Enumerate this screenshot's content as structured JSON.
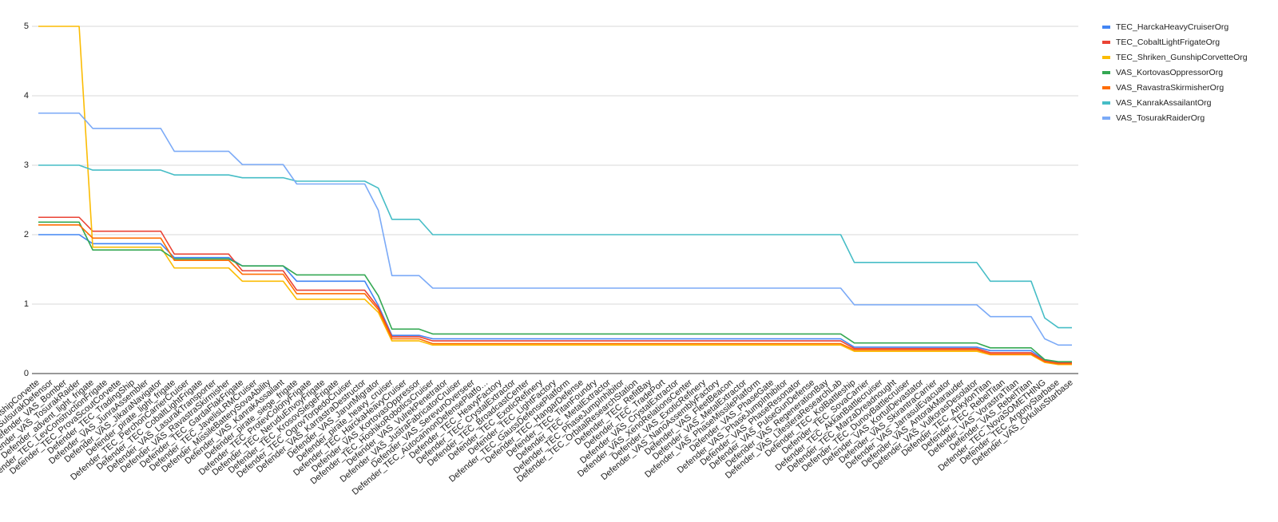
{
  "chart_data": {
    "type": "line",
    "categories": [
      "Defender_TEC_GunshipCorvette",
      "Defender_VAS_SulsurakDefensor",
      "Defender_VAS_Bomber",
      "Defender_VAS_TosurakRaider",
      "Defender_advent_light_frigate",
      "Defender_TEC_LevConstructionFrigate",
      "Defender_TEC_ProvaScoutCorvette",
      "Defender_TEC_TradingShip",
      "Defender_VAS_JunraAssembler",
      "Defender_VAS_JikaraNavigator",
      "Defender_pirate_light_frigate",
      "Defender_TEC_PerchonCarrierCruiser",
      "Defender_TEC_CobaltLightFrigate",
      "Defender_VAS_LasurakTransporter",
      "Defender_VAS_RavastraSkirmisher",
      "Defender_TEC_GardaFlakFrigate",
      "Defender_TEC_JavelisLRMCruiser",
      "Defender_MissileBatterySovaAbility",
      "Defender_VAS_KanrakAssailant",
      "Defender_pirate_siege_frigate",
      "Defender_TEC_ProtevColonyFrigate",
      "Defender_TEC_NeruduEnvoyFrigate",
      "Defender_TEC_KrosovSiegeFrigate",
      "Defender_TEC_OgrovTorpedoCruiser",
      "Defender_VAS_KarrastraDestructor",
      "Defender_VAS_JarunMigrator",
      "Defender_pirate_heavy_cruiser",
      "Defender_TEC_HarckaHeavyCruiser",
      "Defender_VAS_KortovasOppressor",
      "Defender_TEC_HoshikoRoboticsCruiser",
      "Defender_VAS_VulrekPenetrator",
      "Defender_VAS_JustraFabricatorCruiser",
      "Defender_VAS_SerevunOverseer",
      "Defender_TEC_AutocannonDefensePlatfo…",
      "Defender_TEC_HeavyFactory",
      "Defender_TEC_CrystalExtractor",
      "Defender_TEC_BroadcastCenter",
      "Defender_TEC_ExoticRefinery",
      "Defender_TEC_LightFactory",
      "Defender_TEC_GaussDefensePlatform",
      "Defender_TEC_HangarDefense",
      "Defender_TEC_TitanFoundry",
      "Defender_TEC_MetalExtractor",
      "Defender_TEC_PhaseJumpInhibitor",
      "Defender_TEC_OrbitalResearchStation",
      "Defender_TEC_RefitBay",
      "Defender_TEC_TradePort",
      "Defender_VAS_CrystalExtractor",
      "Defender_VAS_XenoRelationsCenter",
      "Defender_VAS_ExoticRefinery",
      "Defender_VAS_NanoAssemblyFactory",
      "Defender_VAS_FleetBeacon",
      "Defender_VAS_MetalExtractor",
      "Defender_VAS_PhaseMissilePlatform",
      "Defender_VAS_PhaseGate",
      "Defender_VAS_PhaseJumpInhibitor",
      "Defender_VAS_PhaseResonator",
      "Defender_VAS_PulseGunDefense",
      "Defender_VAS_RegenerationBay",
      "Defender_VAS_LifesteraResearchLab",
      "Defender_TEC_KolBattleship",
      "Defender_TEC_SovaCarrier",
      "Defender_TEC_AkkanBattlecruiser",
      "Defender_TEC_MarzaDreadnought",
      "Defender_TEC_DunovBattlecruiser",
      "Defender_VAS_KortulDevastator",
      "Defender_VAS_SkirantraCarrier",
      "Defender_VAS_JarrasulEvacuator",
      "Defender_VAS_AntorakMarauder",
      "Defender_VAS_VulkorasDesolator",
      "Defender_TEC_AnkylonTitan",
      "Defender_TEC_RebelTitan",
      "Defender_VAS_VorastraTitan",
      "Defender_VAS_RebelTitan",
      "Defender_TEC_NovaSOMETHING",
      "Defender_TEC_ArgonyStarbase",
      "Defender_VAS_OrkulusStarbase"
    ],
    "series": [
      {
        "name": "TEC_HarckaHeavyCruiserOrg",
        "color": "#4285f4",
        "values": [
          2,
          2,
          2,
          2,
          1.87,
          1.87,
          1.87,
          1.87,
          1.87,
          1.87,
          1.67,
          1.67,
          1.67,
          1.67,
          1.67,
          1.55,
          1.55,
          1.55,
          1.55,
          1.33,
          1.33,
          1.33,
          1.33,
          1.33,
          1.33,
          0.98,
          0.55,
          0.55,
          0.55,
          0.5,
          0.5,
          0.5,
          0.5,
          0.5,
          0.5,
          0.5,
          0.5,
          0.5,
          0.5,
          0.5,
          0.5,
          0.5,
          0.5,
          0.5,
          0.5,
          0.5,
          0.5,
          0.5,
          0.5,
          0.5,
          0.5,
          0.5,
          0.5,
          0.5,
          0.5,
          0.5,
          0.5,
          0.5,
          0.5,
          0.5,
          0.38,
          0.38,
          0.38,
          0.38,
          0.38,
          0.38,
          0.38,
          0.38,
          0.38,
          0.38,
          0.33,
          0.33,
          0.33,
          0.33,
          0.19,
          0.16,
          0.16
        ]
      },
      {
        "name": "TEC_CobaltLightFrigateOrg",
        "color": "#ea4335",
        "values": [
          2.25,
          2.25,
          2.25,
          2.25,
          2.05,
          2.05,
          2.05,
          2.05,
          2.05,
          2.05,
          1.72,
          1.72,
          1.72,
          1.72,
          1.72,
          1.48,
          1.48,
          1.48,
          1.48,
          1.2,
          1.2,
          1.2,
          1.2,
          1.2,
          1.2,
          0.95,
          0.53,
          0.53,
          0.53,
          0.47,
          0.47,
          0.47,
          0.47,
          0.47,
          0.47,
          0.47,
          0.47,
          0.47,
          0.47,
          0.47,
          0.47,
          0.47,
          0.47,
          0.47,
          0.47,
          0.47,
          0.47,
          0.47,
          0.47,
          0.47,
          0.47,
          0.47,
          0.47,
          0.47,
          0.47,
          0.47,
          0.47,
          0.47,
          0.47,
          0.47,
          0.36,
          0.36,
          0.36,
          0.36,
          0.36,
          0.36,
          0.36,
          0.36,
          0.36,
          0.36,
          0.3,
          0.3,
          0.3,
          0.3,
          0.18,
          0.15,
          0.15
        ]
      },
      {
        "name": "TEC_Shriken_GunshipCorvetteOrg",
        "color": "#fbbc04",
        "values": [
          5,
          5,
          5,
          5,
          1.82,
          1.82,
          1.82,
          1.82,
          1.82,
          1.82,
          1.52,
          1.52,
          1.52,
          1.52,
          1.52,
          1.33,
          1.33,
          1.33,
          1.33,
          1.07,
          1.07,
          1.07,
          1.07,
          1.07,
          1.07,
          0.88,
          0.47,
          0.47,
          0.47,
          0.41,
          0.41,
          0.41,
          0.41,
          0.41,
          0.41,
          0.41,
          0.41,
          0.41,
          0.41,
          0.41,
          0.41,
          0.41,
          0.41,
          0.41,
          0.41,
          0.41,
          0.41,
          0.41,
          0.41,
          0.41,
          0.41,
          0.41,
          0.41,
          0.41,
          0.41,
          0.41,
          0.41,
          0.41,
          0.41,
          0.41,
          0.32,
          0.32,
          0.32,
          0.32,
          0.32,
          0.32,
          0.32,
          0.32,
          0.32,
          0.32,
          0.27,
          0.27,
          0.27,
          0.27,
          0.16,
          0.13,
          0.13
        ]
      },
      {
        "name": "VAS_KortovasOppressorOrg",
        "color": "#34a853",
        "values": [
          2.18,
          2.18,
          2.18,
          2.18,
          1.78,
          1.78,
          1.78,
          1.78,
          1.78,
          1.78,
          1.65,
          1.65,
          1.65,
          1.65,
          1.65,
          1.55,
          1.55,
          1.55,
          1.55,
          1.42,
          1.42,
          1.42,
          1.42,
          1.42,
          1.42,
          1.12,
          0.64,
          0.64,
          0.64,
          0.57,
          0.57,
          0.57,
          0.57,
          0.57,
          0.57,
          0.57,
          0.57,
          0.57,
          0.57,
          0.57,
          0.57,
          0.57,
          0.57,
          0.57,
          0.57,
          0.57,
          0.57,
          0.57,
          0.57,
          0.57,
          0.57,
          0.57,
          0.57,
          0.57,
          0.57,
          0.57,
          0.57,
          0.57,
          0.57,
          0.57,
          0.44,
          0.44,
          0.44,
          0.44,
          0.44,
          0.44,
          0.44,
          0.44,
          0.44,
          0.44,
          0.37,
          0.37,
          0.37,
          0.37,
          0.2,
          0.17,
          0.17
        ]
      },
      {
        "name": "VAS_RavastraSkirmisherOrg",
        "color": "#ff6d01",
        "values": [
          2.14,
          2.14,
          2.14,
          2.14,
          1.95,
          1.95,
          1.95,
          1.95,
          1.95,
          1.95,
          1.63,
          1.63,
          1.63,
          1.63,
          1.63,
          1.43,
          1.43,
          1.43,
          1.43,
          1.15,
          1.15,
          1.15,
          1.15,
          1.15,
          1.15,
          0.92,
          0.5,
          0.5,
          0.5,
          0.43,
          0.43,
          0.43,
          0.43,
          0.43,
          0.43,
          0.43,
          0.43,
          0.43,
          0.43,
          0.43,
          0.43,
          0.43,
          0.43,
          0.43,
          0.43,
          0.43,
          0.43,
          0.43,
          0.43,
          0.43,
          0.43,
          0.43,
          0.43,
          0.43,
          0.43,
          0.43,
          0.43,
          0.43,
          0.43,
          0.43,
          0.34,
          0.34,
          0.34,
          0.34,
          0.34,
          0.34,
          0.34,
          0.34,
          0.34,
          0.34,
          0.28,
          0.28,
          0.28,
          0.28,
          0.17,
          0.14,
          0.14
        ]
      },
      {
        "name": "VAS_KanrakAssailantOrg",
        "color": "#46bdc6",
        "values": [
          3,
          3,
          3,
          3,
          2.93,
          2.93,
          2.93,
          2.93,
          2.93,
          2.93,
          2.86,
          2.86,
          2.86,
          2.86,
          2.86,
          2.82,
          2.82,
          2.82,
          2.82,
          2.77,
          2.77,
          2.77,
          2.77,
          2.77,
          2.77,
          2.67,
          2.22,
          2.22,
          2.22,
          2,
          2,
          2,
          2,
          2,
          2,
          2,
          2,
          2,
          2,
          2,
          2,
          2,
          2,
          2,
          2,
          2,
          2,
          2,
          2,
          2,
          2,
          2,
          2,
          2,
          2,
          2,
          2,
          2,
          2,
          2,
          1.6,
          1.6,
          1.6,
          1.6,
          1.6,
          1.6,
          1.6,
          1.6,
          1.6,
          1.6,
          1.33,
          1.33,
          1.33,
          1.33,
          0.8,
          0.66,
          0.66
        ]
      },
      {
        "name": "VAS_TosurakRaiderOrg",
        "color": "#7baaf7",
        "values": [
          3.75,
          3.75,
          3.75,
          3.75,
          3.53,
          3.53,
          3.53,
          3.53,
          3.53,
          3.53,
          3.2,
          3.2,
          3.2,
          3.2,
          3.2,
          3.01,
          3.01,
          3.01,
          3.01,
          2.73,
          2.73,
          2.73,
          2.73,
          2.73,
          2.73,
          2.35,
          1.41,
          1.41,
          1.41,
          1.23,
          1.23,
          1.23,
          1.23,
          1.23,
          1.23,
          1.23,
          1.23,
          1.23,
          1.23,
          1.23,
          1.23,
          1.23,
          1.23,
          1.23,
          1.23,
          1.23,
          1.23,
          1.23,
          1.23,
          1.23,
          1.23,
          1.23,
          1.23,
          1.23,
          1.23,
          1.23,
          1.23,
          1.23,
          1.23,
          1.23,
          0.99,
          0.99,
          0.99,
          0.99,
          0.99,
          0.99,
          0.99,
          0.99,
          0.99,
          0.99,
          0.82,
          0.82,
          0.82,
          0.82,
          0.5,
          0.41,
          0.41
        ]
      }
    ],
    "ylim": [
      0,
      5
    ],
    "yticks": [
      0,
      1,
      2,
      3,
      4,
      5
    ],
    "grid": true,
    "legend": "right"
  }
}
